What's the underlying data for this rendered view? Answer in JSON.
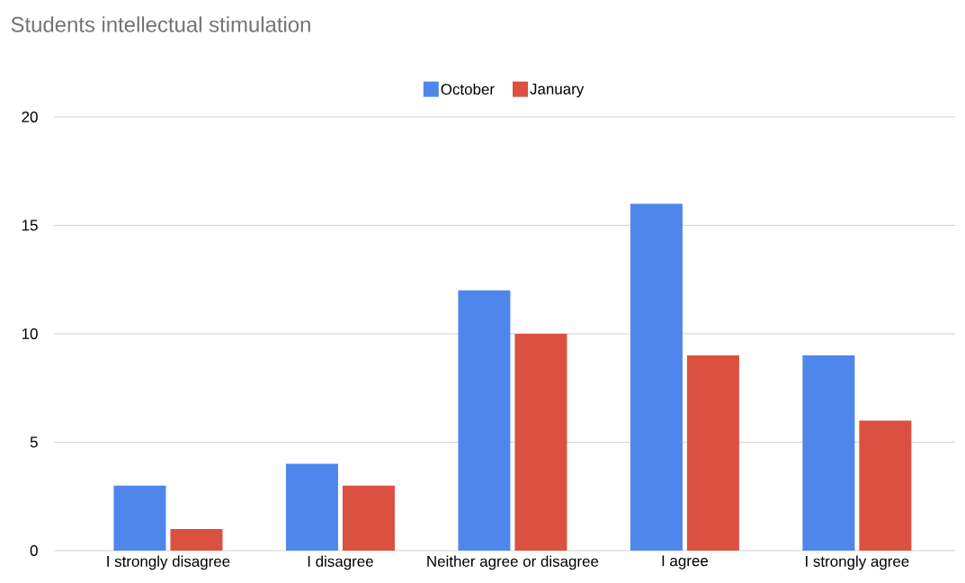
{
  "chart_data": {
    "type": "bar",
    "title": "Students intellectual stimulation",
    "categories": [
      "I strongly disagree",
      "I disagree",
      "Neither agree or disagree",
      "I agree",
      "I strongly agree"
    ],
    "series": [
      {
        "name": "October",
        "color": "#4f86ec",
        "values": [
          3,
          4,
          12,
          16,
          9
        ]
      },
      {
        "name": "January",
        "color": "#dc503f",
        "values": [
          1,
          3,
          10,
          9,
          6
        ]
      }
    ],
    "ylim": [
      0,
      20
    ],
    "yticks": [
      0,
      5,
      10,
      15,
      20
    ],
    "grid": "y",
    "legend": "top"
  }
}
